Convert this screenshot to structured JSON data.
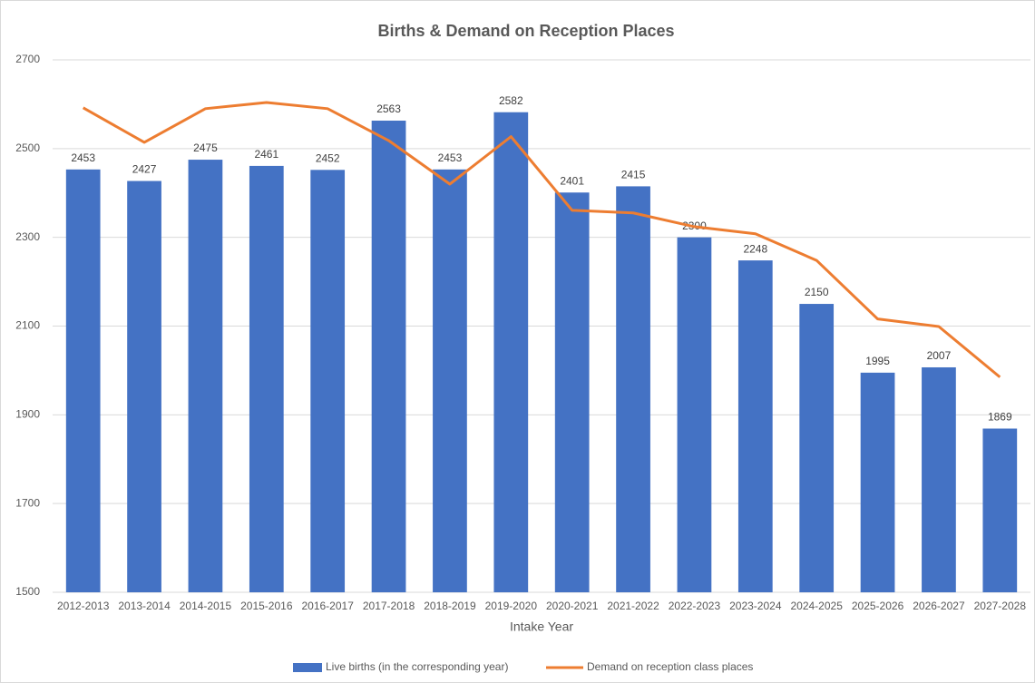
{
  "chart_data": {
    "type": "bar-line",
    "title": "Births & Demand on Reception Places",
    "x_label": "Intake Year",
    "categories": [
      "2012-2013",
      "2013-2014",
      "2014-2015",
      "2015-2016",
      "2016-2017",
      "2017-2018",
      "2018-2019",
      "2019-2020",
      "2020-2021",
      "2021-2022",
      "2022-2023",
      "2023-2024",
      "2024-2025",
      "2025-2026",
      "2026-2027",
      "2027-2028"
    ],
    "series": [
      {
        "name": "Live births (in the corresponding year)",
        "type": "bar",
        "color": "#4472c4",
        "values": [
          2453,
          2427,
          2475,
          2461,
          2452,
          2563,
          2453,
          2582,
          2401,
          2415,
          2300,
          2248,
          2150,
          1995,
          2007,
          1869
        ]
      },
      {
        "name": "Demand on reception class places",
        "type": "line",
        "color": "#ed7d31",
        "values": [
          2592,
          2514,
          2590,
          2604,
          2590,
          2518,
          2420,
          2527,
          2361,
          2355,
          2324,
          2308,
          2248,
          2116,
          2099,
          1985
        ]
      }
    ],
    "ylim": [
      1500,
      2700
    ],
    "yticks": [
      1500,
      1700,
      1900,
      2100,
      2300,
      2500,
      2700
    ],
    "grid": true,
    "legend": "bottom"
  }
}
